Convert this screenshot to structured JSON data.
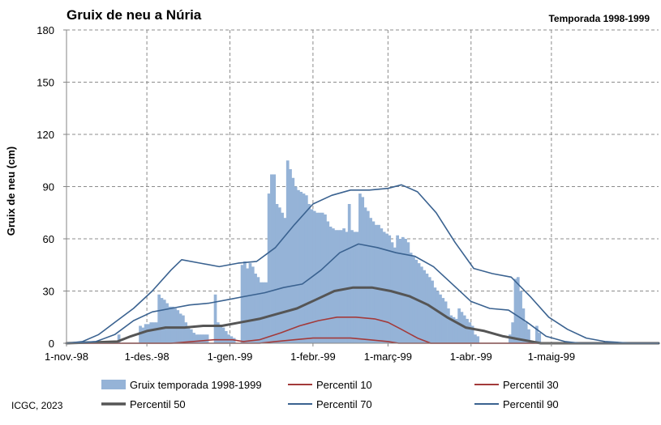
{
  "chart_data": {
    "type": "bar",
    "title": "Gruix de neu a Núria",
    "subtitle": "Temporada 1998-1999",
    "xlabel": "",
    "ylabel": "Gruix de neu (cm)",
    "ylim": [
      0,
      180
    ],
    "yticks": [
      "0",
      "30",
      "60",
      "90",
      "120",
      "150",
      "180"
    ],
    "x_start": "1998-11-01",
    "xticks": [
      "1-nov.-98",
      "1-des.-98",
      "1-gen.-99",
      "1-febr.-99",
      "1-març-99",
      "1-abr.-99",
      "1-maig-99"
    ],
    "xtick_dates": [
      "1998-11-01",
      "1998-12-01",
      "1999-01-01",
      "1999-02-01",
      "1999-03-01",
      "1999-04-01",
      "1999-05-01"
    ],
    "x_end": "1999-06-10",
    "grid": true,
    "legend_position": "bottom",
    "colors": {
      "bars": "#95b3d7",
      "p10": "#a33a3a",
      "p30": "#a33a3a",
      "p50": "#555555",
      "p70": "#3a6290",
      "p90": "#3a6290"
    },
    "bar_series": {
      "name": "Gruix temporada 1998-1999",
      "values": [
        [
          "1998-11-20",
          5
        ],
        [
          "1998-11-28",
          10
        ],
        [
          "1998-11-29",
          9
        ],
        [
          "1998-11-30",
          11
        ],
        [
          "1998-12-01",
          11
        ],
        [
          "1998-12-02",
          12
        ],
        [
          "1998-12-03",
          12
        ],
        [
          "1998-12-04",
          12
        ],
        [
          "1998-12-05",
          28
        ],
        [
          "1998-12-06",
          26
        ],
        [
          "1998-12-07",
          25
        ],
        [
          "1998-12-08",
          23
        ],
        [
          "1998-12-09",
          21
        ],
        [
          "1998-12-10",
          21
        ],
        [
          "1998-12-11",
          20
        ],
        [
          "1998-12-12",
          19
        ],
        [
          "1998-12-13",
          17
        ],
        [
          "1998-12-14",
          16
        ],
        [
          "1998-12-15",
          12
        ],
        [
          "1998-12-16",
          10
        ],
        [
          "1998-12-17",
          8
        ],
        [
          "1998-12-18",
          6
        ],
        [
          "1998-12-19",
          5
        ],
        [
          "1998-12-20",
          5
        ],
        [
          "1998-12-21",
          5
        ],
        [
          "1998-12-22",
          5
        ],
        [
          "1998-12-23",
          5
        ],
        [
          "1998-12-26",
          28
        ],
        [
          "1998-12-27",
          12
        ],
        [
          "1998-12-28",
          10
        ],
        [
          "1998-12-29",
          9
        ],
        [
          "1998-12-30",
          7
        ],
        [
          "1998-12-31",
          5
        ],
        [
          "1999-01-01",
          4
        ],
        [
          "1999-01-02",
          3
        ],
        [
          "1999-01-05",
          45
        ],
        [
          "1999-01-06",
          47
        ],
        [
          "1999-01-07",
          43
        ],
        [
          "1999-01-08",
          46
        ],
        [
          "1999-01-09",
          44
        ],
        [
          "1999-01-10",
          40
        ],
        [
          "1999-01-11",
          38
        ],
        [
          "1999-01-12",
          35
        ],
        [
          "1999-01-13",
          35
        ],
        [
          "1999-01-14",
          35
        ],
        [
          "1999-01-15",
          86
        ],
        [
          "1999-01-16",
          97
        ],
        [
          "1999-01-17",
          97
        ],
        [
          "1999-01-18",
          80
        ],
        [
          "1999-01-19",
          78
        ],
        [
          "1999-01-20",
          75
        ],
        [
          "1999-01-21",
          72
        ],
        [
          "1999-01-22",
          105
        ],
        [
          "1999-01-23",
          100
        ],
        [
          "1999-01-24",
          95
        ],
        [
          "1999-01-25",
          90
        ],
        [
          "1999-01-26",
          88
        ],
        [
          "1999-01-27",
          87
        ],
        [
          "1999-01-28",
          86
        ],
        [
          "1999-01-29",
          85
        ],
        [
          "1999-01-30",
          80
        ],
        [
          "1999-01-31",
          77
        ],
        [
          "1999-02-01",
          76
        ],
        [
          "1999-02-02",
          75
        ],
        [
          "1999-02-03",
          75
        ],
        [
          "1999-02-04",
          75
        ],
        [
          "1999-02-05",
          74
        ],
        [
          "1999-02-06",
          70
        ],
        [
          "1999-02-07",
          67
        ],
        [
          "1999-02-08",
          66
        ],
        [
          "1999-02-09",
          65
        ],
        [
          "1999-02-10",
          65
        ],
        [
          "1999-02-11",
          65
        ],
        [
          "1999-02-12",
          66
        ],
        [
          "1999-02-13",
          64
        ],
        [
          "1999-02-14",
          80
        ],
        [
          "1999-02-15",
          65
        ],
        [
          "1999-02-16",
          64
        ],
        [
          "1999-02-17",
          64
        ],
        [
          "1999-02-18",
          86
        ],
        [
          "1999-02-19",
          84
        ],
        [
          "1999-02-20",
          78
        ],
        [
          "1999-02-21",
          76
        ],
        [
          "1999-02-22",
          72
        ],
        [
          "1999-02-23",
          70
        ],
        [
          "1999-02-24",
          68
        ],
        [
          "1999-02-25",
          68
        ],
        [
          "1999-02-26",
          66
        ],
        [
          "1999-02-27",
          64
        ],
        [
          "1999-02-28",
          63
        ],
        [
          "1999-03-01",
          62
        ],
        [
          "1999-03-02",
          58
        ],
        [
          "1999-03-03",
          55
        ],
        [
          "1999-03-04",
          62
        ],
        [
          "1999-03-05",
          60
        ],
        [
          "1999-03-06",
          61
        ],
        [
          "1999-03-07",
          60
        ],
        [
          "1999-03-08",
          58
        ],
        [
          "1999-03-09",
          52
        ],
        [
          "1999-03-10",
          50
        ],
        [
          "1999-03-11",
          48
        ],
        [
          "1999-03-12",
          46
        ],
        [
          "1999-03-13",
          44
        ],
        [
          "1999-03-14",
          42
        ],
        [
          "1999-03-15",
          40
        ],
        [
          "1999-03-16",
          38
        ],
        [
          "1999-03-17",
          36
        ],
        [
          "1999-03-18",
          32
        ],
        [
          "1999-03-19",
          30
        ],
        [
          "1999-03-20",
          28
        ],
        [
          "1999-03-21",
          26
        ],
        [
          "1999-03-22",
          24
        ],
        [
          "1999-03-23",
          20
        ],
        [
          "1999-03-24",
          16
        ],
        [
          "1999-03-25",
          15
        ],
        [
          "1999-03-26",
          14
        ],
        [
          "1999-03-27",
          20
        ],
        [
          "1999-03-28",
          18
        ],
        [
          "1999-03-29",
          16
        ],
        [
          "1999-03-30",
          14
        ],
        [
          "1999-03-31",
          12
        ],
        [
          "1999-04-01",
          10
        ],
        [
          "1999-04-02",
          5
        ],
        [
          "1999-04-03",
          4
        ],
        [
          "1999-04-15",
          5
        ],
        [
          "1999-04-16",
          12
        ],
        [
          "1999-04-17",
          37
        ],
        [
          "1999-04-18",
          38
        ],
        [
          "1999-04-19",
          30
        ],
        [
          "1999-04-20",
          20
        ],
        [
          "1999-04-21",
          12
        ],
        [
          "1999-04-22",
          8
        ],
        [
          "1999-04-25",
          10
        ],
        [
          "1999-04-26",
          6
        ]
      ]
    },
    "series": [
      {
        "name": "Percentil 10",
        "points": [
          [
            "1998-11-01",
            0
          ],
          [
            "1999-01-12",
            0
          ],
          [
            "1999-01-18",
            1
          ],
          [
            "1999-01-25",
            2
          ],
          [
            "1999-02-01",
            3
          ],
          [
            "1999-02-08",
            3
          ],
          [
            "1999-02-15",
            3
          ],
          [
            "1999-02-22",
            2
          ],
          [
            "1999-03-01",
            1
          ],
          [
            "1999-03-05",
            0
          ],
          [
            "1999-06-10",
            0
          ]
        ]
      },
      {
        "name": "Percentil 30",
        "points": [
          [
            "1998-11-01",
            0
          ],
          [
            "1998-12-10",
            0
          ],
          [
            "1998-12-18",
            1
          ],
          [
            "1998-12-26",
            2
          ],
          [
            "1999-01-02",
            2
          ],
          [
            "1999-01-06",
            1
          ],
          [
            "1999-01-12",
            2
          ],
          [
            "1999-01-20",
            6
          ],
          [
            "1999-01-27",
            10
          ],
          [
            "1999-02-03",
            13
          ],
          [
            "1999-02-10",
            15
          ],
          [
            "1999-02-17",
            15
          ],
          [
            "1999-02-24",
            14
          ],
          [
            "1999-03-01",
            12
          ],
          [
            "1999-03-06",
            8
          ],
          [
            "1999-03-12",
            3
          ],
          [
            "1999-03-17",
            0
          ],
          [
            "1999-06-10",
            0
          ]
        ]
      },
      {
        "name": "Percentil 50",
        "points": [
          [
            "1998-11-01",
            0
          ],
          [
            "1998-11-20",
            1
          ],
          [
            "1998-11-25",
            4
          ],
          [
            "1998-12-01",
            7
          ],
          [
            "1998-12-08",
            9
          ],
          [
            "1998-12-15",
            9
          ],
          [
            "1998-12-22",
            10
          ],
          [
            "1998-12-29",
            10
          ],
          [
            "1999-01-05",
            12
          ],
          [
            "1999-01-12",
            14
          ],
          [
            "1999-01-19",
            17
          ],
          [
            "1999-01-26",
            20
          ],
          [
            "1999-02-02",
            25
          ],
          [
            "1999-02-09",
            30
          ],
          [
            "1999-02-16",
            32
          ],
          [
            "1999-02-23",
            32
          ],
          [
            "1999-03-02",
            30
          ],
          [
            "1999-03-09",
            27
          ],
          [
            "1999-03-16",
            22
          ],
          [
            "1999-03-23",
            15
          ],
          [
            "1999-03-30",
            9
          ],
          [
            "1999-04-06",
            7
          ],
          [
            "1999-04-13",
            4
          ],
          [
            "1999-04-20",
            2
          ],
          [
            "1999-04-27",
            0
          ],
          [
            "1999-06-10",
            0
          ]
        ]
      },
      {
        "name": "Percentil 70",
        "points": [
          [
            "1998-11-01",
            0
          ],
          [
            "1998-11-12",
            1
          ],
          [
            "1998-11-19",
            5
          ],
          [
            "1998-11-26",
            13
          ],
          [
            "1998-12-03",
            18
          ],
          [
            "1998-12-10",
            20
          ],
          [
            "1998-12-17",
            22
          ],
          [
            "1998-12-24",
            23
          ],
          [
            "1998-12-31",
            25
          ],
          [
            "1999-01-07",
            27
          ],
          [
            "1999-01-14",
            29
          ],
          [
            "1999-01-21",
            32
          ],
          [
            "1999-01-28",
            34
          ],
          [
            "1999-02-04",
            42
          ],
          [
            "1999-02-11",
            52
          ],
          [
            "1999-02-18",
            57
          ],
          [
            "1999-02-25",
            55
          ],
          [
            "1999-03-04",
            52
          ],
          [
            "1999-03-11",
            50
          ],
          [
            "1999-03-18",
            44
          ],
          [
            "1999-03-25",
            34
          ],
          [
            "1999-04-01",
            24
          ],
          [
            "1999-04-08",
            20
          ],
          [
            "1999-04-15",
            19
          ],
          [
            "1999-04-22",
            12
          ],
          [
            "1999-04-29",
            4
          ],
          [
            "1999-05-06",
            1
          ],
          [
            "1999-05-12",
            0
          ],
          [
            "1999-06-10",
            0
          ]
        ]
      },
      {
        "name": "Percentil 90",
        "points": [
          [
            "1998-11-01",
            0
          ],
          [
            "1998-11-07",
            1
          ],
          [
            "1998-11-13",
            5
          ],
          [
            "1998-11-19",
            12
          ],
          [
            "1998-11-26",
            20
          ],
          [
            "1998-12-03",
            30
          ],
          [
            "1998-12-10",
            42
          ],
          [
            "1998-12-14",
            48
          ],
          [
            "1998-12-21",
            46
          ],
          [
            "1998-12-28",
            44
          ],
          [
            "1999-01-04",
            46
          ],
          [
            "1999-01-11",
            47
          ],
          [
            "1999-01-18",
            55
          ],
          [
            "1999-01-25",
            68
          ],
          [
            "1999-02-01",
            80
          ],
          [
            "1999-02-08",
            85
          ],
          [
            "1999-02-15",
            88
          ],
          [
            "1999-02-22",
            88
          ],
          [
            "1999-03-01",
            89
          ],
          [
            "1999-03-06",
            91
          ],
          [
            "1999-03-12",
            87
          ],
          [
            "1999-03-19",
            75
          ],
          [
            "1999-03-26",
            58
          ],
          [
            "1999-04-02",
            43
          ],
          [
            "1999-04-09",
            40
          ],
          [
            "1999-04-16",
            38
          ],
          [
            "1999-04-23",
            27
          ],
          [
            "1999-04-30",
            15
          ],
          [
            "1999-05-07",
            8
          ],
          [
            "1999-05-14",
            3
          ],
          [
            "1999-05-21",
            1
          ],
          [
            "1999-05-31",
            0
          ],
          [
            "1999-06-10",
            0
          ]
        ]
      }
    ]
  },
  "footer": {
    "credit": "ICGC, 2023"
  }
}
